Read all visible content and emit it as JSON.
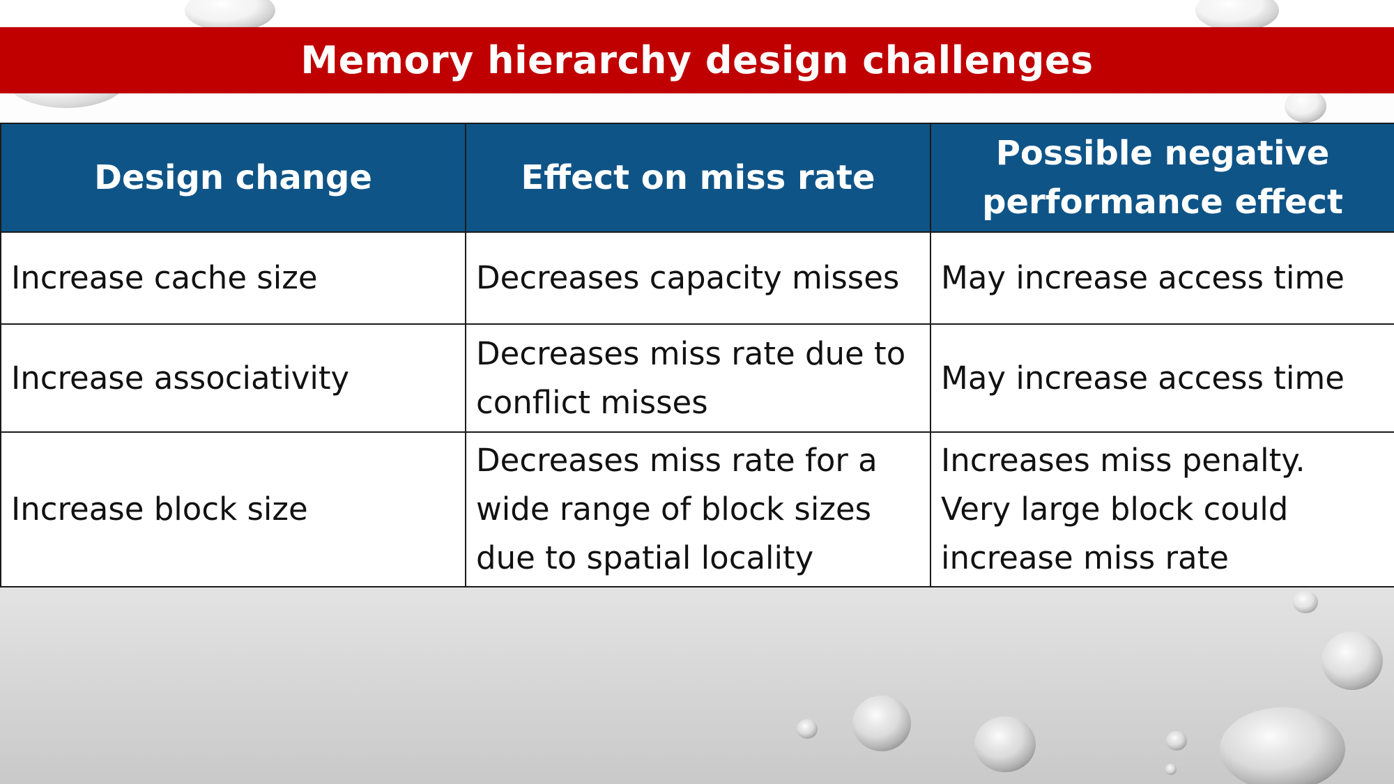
{
  "slide": {
    "title": "Memory hierarchy design challenges"
  },
  "table": {
    "headers": [
      "Design change",
      "Effect on miss rate",
      "Possible negative performance effect"
    ],
    "rows": [
      {
        "design_change": "Increase cache size",
        "effect": "Decreases capacity misses",
        "negative_effect": "May increase access time"
      },
      {
        "design_change": "Increase associativity",
        "effect": "Decreases miss rate due to conflict misses",
        "negative_effect": "May increase access time"
      },
      {
        "design_change": "Increase block size",
        "effect": "Decreases miss rate for a wide range of block sizes due to spatial locality",
        "negative_effect": "Increases miss penalty. Very large block could increase miss rate"
      }
    ]
  },
  "colors": {
    "title_bar": "#c00000",
    "header_background": "#0f5487",
    "header_text": "#ffffff",
    "cell_background": "#ffffff",
    "border": "#1a1a1a"
  }
}
